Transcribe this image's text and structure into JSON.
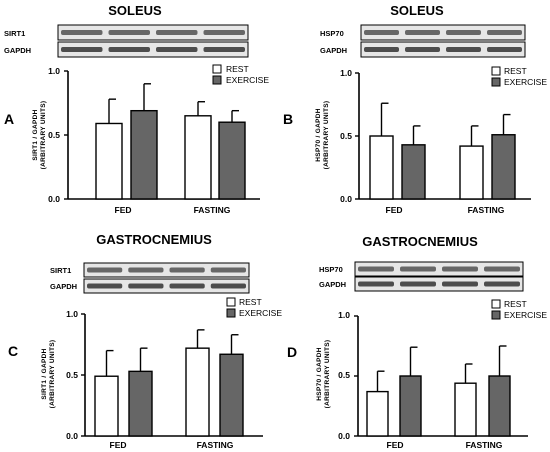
{
  "colors": {
    "rest_fill": "#ffffff",
    "exercise_fill": "#666666",
    "axis": "#000000",
    "blot_bg": "#e6e6e6",
    "band": "#3c3c3c"
  },
  "chart_data": [
    {
      "type": "bar",
      "panel_letter": "A",
      "title": "SOLEUS",
      "blot_labels": [
        "SIRT1",
        "GAPDH"
      ],
      "categories": [
        "FED",
        "FASTING"
      ],
      "ylabel_line1": "SIRT1 / GAPDH",
      "ylabel_line2": "(ARBITRARY UNITS)",
      "ylim": [
        0,
        1.0
      ],
      "yticks": [
        "0.0",
        "0.5",
        "1.0"
      ],
      "legend_position": "top-right",
      "series": [
        {
          "name": "REST",
          "values": [
            0.59,
            0.65
          ],
          "errors": [
            0.19,
            0.11
          ]
        },
        {
          "name": "EXERCISE",
          "values": [
            0.69,
            0.6
          ],
          "errors": [
            0.21,
            0.09
          ]
        }
      ]
    },
    {
      "type": "bar",
      "panel_letter": "B",
      "title": "SOLEUS",
      "blot_labels": [
        "HSP70",
        "GAPDH"
      ],
      "categories": [
        "FED",
        "FASTING"
      ],
      "ylabel_line1": "HSP70 / GAPDH",
      "ylabel_line2": "(ARBITRARY UNITS)",
      "ylim": [
        0,
        1.0
      ],
      "yticks": [
        "0.0",
        "0.5",
        "1.0"
      ],
      "legend_position": "top-right",
      "series": [
        {
          "name": "REST",
          "values": [
            0.5,
            0.42
          ],
          "errors": [
            0.26,
            0.16
          ]
        },
        {
          "name": "EXERCISE",
          "values": [
            0.43,
            0.51
          ],
          "errors": [
            0.15,
            0.16
          ]
        }
      ]
    },
    {
      "type": "bar",
      "panel_letter": "C",
      "title": "GASTROCNEMIUS",
      "blot_labels": [
        "SIRT1",
        "GAPDH"
      ],
      "categories": [
        "FED",
        "FASTING"
      ],
      "ylabel_line1": "SIRT1 / GAPDH",
      "ylabel_line2": "(ARBITRARY UNITS)",
      "ylim": [
        0,
        1.0
      ],
      "yticks": [
        "0.0",
        "0.5",
        "1.0"
      ],
      "legend_position": "top-right",
      "series": [
        {
          "name": "REST",
          "values": [
            0.49,
            0.72
          ],
          "errors": [
            0.21,
            0.15
          ]
        },
        {
          "name": "EXERCISE",
          "values": [
            0.53,
            0.67
          ],
          "errors": [
            0.19,
            0.16
          ]
        }
      ]
    },
    {
      "type": "bar",
      "panel_letter": "D",
      "title": "GASTROCNEMIUS",
      "blot_labels": [
        "HSP70",
        "GAPDH"
      ],
      "categories": [
        "FED",
        "FASTING"
      ],
      "ylabel_line1": "HSP70 / GAPDH",
      "ylabel_line2": "(ARBITRARY UNITS)",
      "ylim": [
        0,
        1.0
      ],
      "yticks": [
        "0.0",
        "0.5",
        "1.0"
      ],
      "legend_position": "top-right",
      "series": [
        {
          "name": "REST",
          "values": [
            0.37,
            0.44
          ],
          "errors": [
            0.17,
            0.16
          ]
        },
        {
          "name": "EXERCISE",
          "values": [
            0.5,
            0.5
          ],
          "errors": [
            0.24,
            0.25
          ]
        }
      ]
    }
  ]
}
